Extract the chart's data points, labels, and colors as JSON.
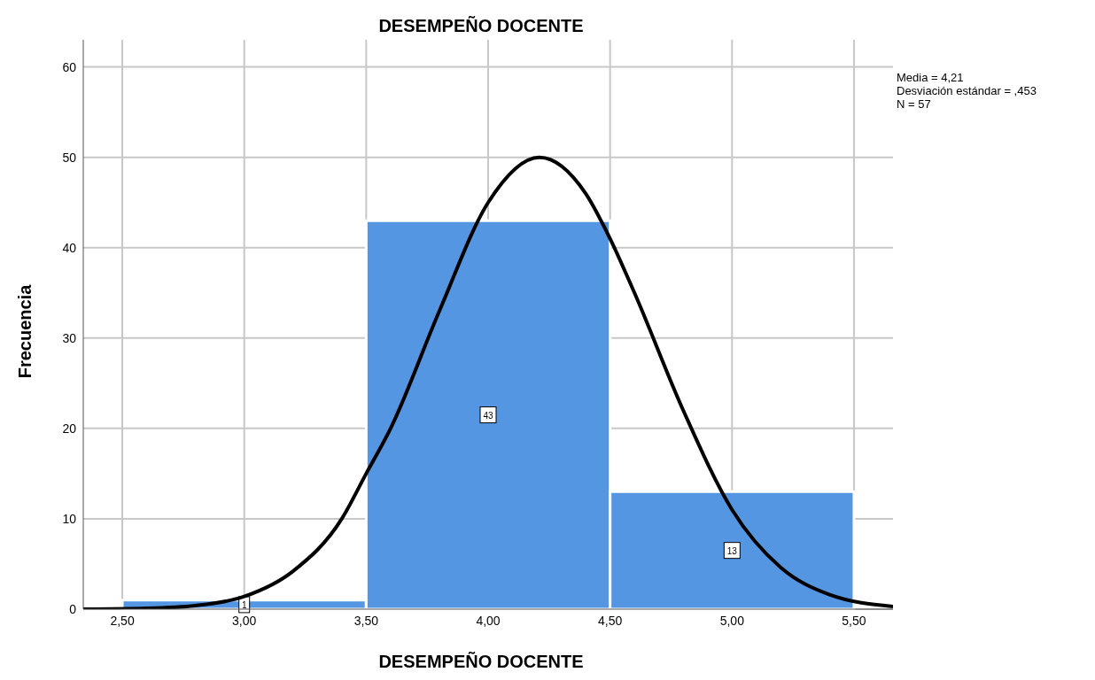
{
  "chart_data": {
    "type": "histogram",
    "title": "DESEMPEÑO DOCENTE",
    "xlabel": "DESEMPEÑO DOCENTE",
    "ylabel": "Frecuencia",
    "bins": [
      2.5,
      3.5,
      4.5,
      5.5
    ],
    "values": [
      1,
      43,
      13
    ],
    "color": "#5596e3",
    "value_labels": [
      "1",
      "43",
      "13"
    ],
    "series": [
      {
        "type": "line",
        "color": "#000000",
        "x": [
          2.34,
          2.6,
          2.8,
          3.0,
          3.2,
          3.4,
          3.5,
          3.6,
          3.8,
          4.0,
          4.21,
          4.4,
          4.5,
          4.6,
          4.8,
          5.0,
          5.2,
          5.4,
          5.66
        ],
        "values": [
          0,
          0.1,
          0.4,
          1.4,
          4.2,
          10,
          15,
          20,
          33,
          45,
          50,
          46,
          41,
          35,
          22,
          11,
          4.6,
          1.6,
          0.3
        ]
      }
    ],
    "xlim": [
      2.34,
      5.66
    ],
    "xticks": [
      {
        "value": 2.5,
        "label": "2,50"
      },
      {
        "value": 3,
        "label": "3,00"
      },
      {
        "value": 3.5,
        "label": "3,50"
      },
      {
        "value": 4,
        "label": "4,00"
      },
      {
        "value": 4.5,
        "label": "4,50"
      },
      {
        "value": 5,
        "label": "5,00"
      },
      {
        "value": 5.5,
        "label": "5,50"
      }
    ],
    "ylim": [
      0,
      63
    ],
    "yticks": [
      0,
      10,
      20,
      30,
      40,
      50,
      60
    ],
    "grid": true,
    "annotations": [
      "Media = 4,21",
      "Desviación estándar = ,453",
      "N = 57"
    ]
  }
}
